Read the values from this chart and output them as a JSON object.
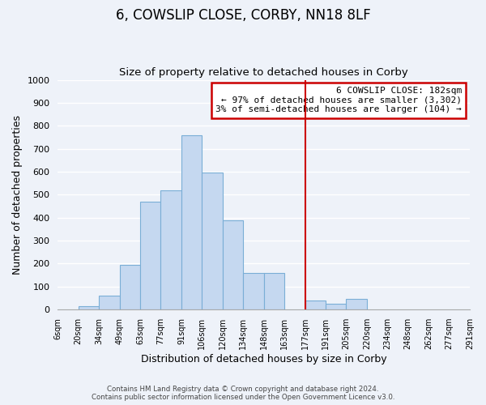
{
  "title": "6, COWSLIP CLOSE, CORBY, NN18 8LF",
  "subtitle": "Size of property relative to detached houses in Corby",
  "xlabel": "Distribution of detached houses by size in Corby",
  "ylabel": "Number of detached properties",
  "footer_line1": "Contains HM Land Registry data © Crown copyright and database right 2024.",
  "footer_line2": "Contains public sector information licensed under the Open Government Licence v3.0.",
  "bin_labels": [
    "6sqm",
    "20sqm",
    "34sqm",
    "49sqm",
    "63sqm",
    "77sqm",
    "91sqm",
    "106sqm",
    "120sqm",
    "134sqm",
    "148sqm",
    "163sqm",
    "177sqm",
    "191sqm",
    "205sqm",
    "220sqm",
    "234sqm",
    "248sqm",
    "262sqm",
    "277sqm",
    "291sqm"
  ],
  "bar_heights": [
    0,
    14,
    62,
    195,
    470,
    518,
    757,
    597,
    390,
    160,
    160,
    0,
    40,
    25,
    45,
    0,
    0,
    0,
    0,
    0
  ],
  "bar_color": "#c5d8f0",
  "bar_edge_color": "#7aaed6",
  "vertical_line_x": 12,
  "vertical_line_color": "#cc0000",
  "annotation_title": "6 COWSLIP CLOSE: 182sqm",
  "annotation_line2": "← 97% of detached houses are smaller (3,302)",
  "annotation_line3": "3% of semi-detached houses are larger (104) →",
  "annotation_box_color": "#cc0000",
  "ylim": [
    0,
    1000
  ],
  "yticks": [
    0,
    100,
    200,
    300,
    400,
    500,
    600,
    700,
    800,
    900,
    1000
  ],
  "background_color": "#eef2f9",
  "plot_background_color": "#eef2f9",
  "title_fontsize": 12,
  "subtitle_fontsize": 9.5,
  "grid_color": "#ffffff",
  "figsize": [
    6.0,
    5.0
  ],
  "dpi": 100
}
